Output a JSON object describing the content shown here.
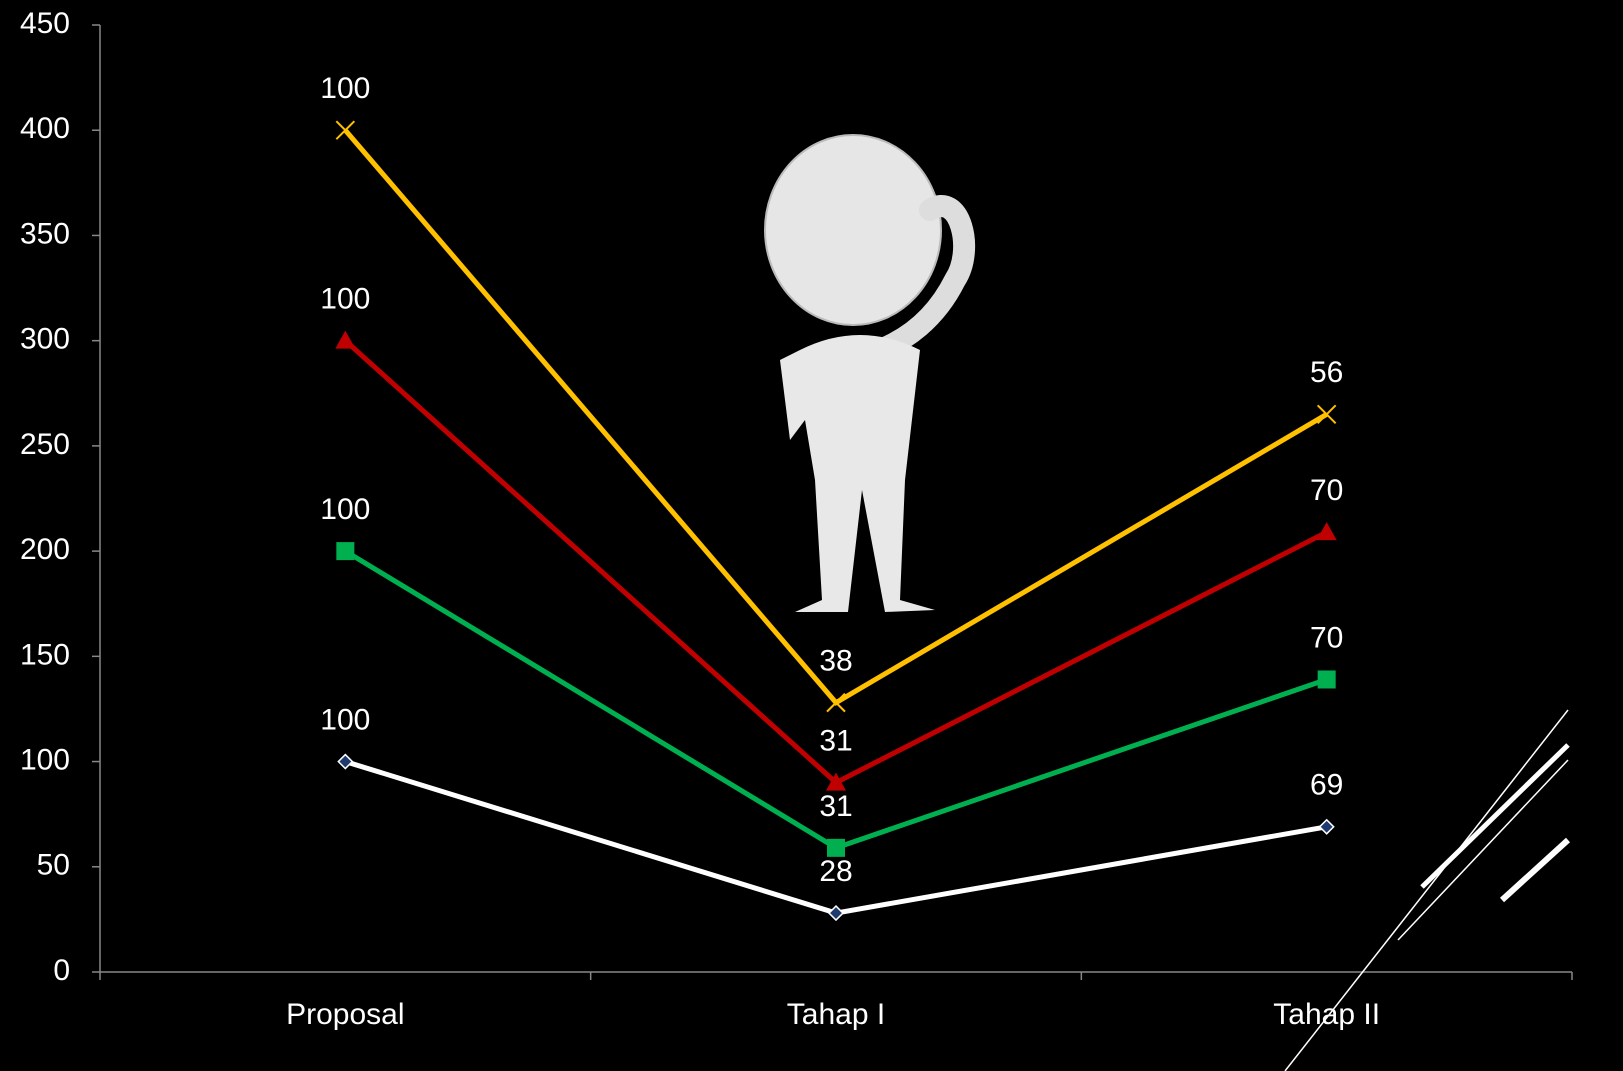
{
  "chart_data": {
    "type": "line",
    "stacked": true,
    "categories": [
      "Proposal",
      "Tahap I",
      "Tahap II"
    ],
    "series": [
      {
        "color": "#ffffff",
        "marker": "diamond",
        "marker_color": "#1f3a6e",
        "values": [
          100,
          28,
          69
        ]
      },
      {
        "color": "#00b050",
        "marker": "square",
        "marker_color": "#00b050",
        "values": [
          100,
          31,
          70
        ]
      },
      {
        "color": "#c00000",
        "marker": "triangle",
        "marker_color": "#c00000",
        "values": [
          100,
          31,
          70
        ]
      },
      {
        "color": "#ffc000",
        "marker": "x",
        "marker_color": "#ffc000",
        "values": [
          100,
          38,
          56
        ]
      }
    ],
    "ylim": [
      0,
      450
    ],
    "yticks": [
      0,
      50,
      100,
      150,
      200,
      250,
      300,
      350,
      400,
      450
    ],
    "grid": false
  }
}
